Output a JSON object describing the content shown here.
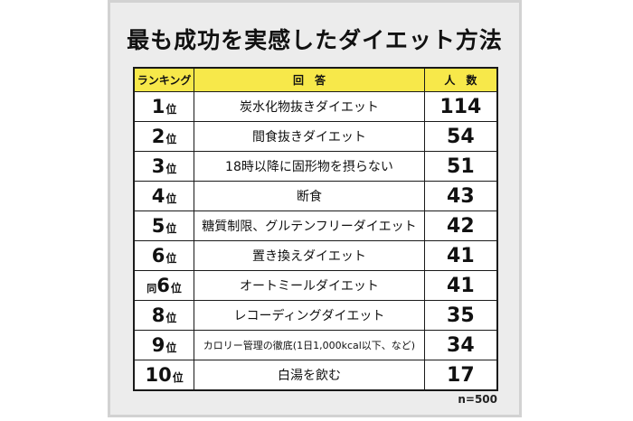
{
  "title": "最も成功を実感したダイエット方法",
  "headers": {
    "rank": "ランキング",
    "answer": "回　答",
    "count": "人　数"
  },
  "rows": [
    {
      "prefix": "",
      "rank": "1",
      "suffix": "位",
      "answer": "炭水化物抜きダイエット",
      "count": "114"
    },
    {
      "prefix": "",
      "rank": "2",
      "suffix": "位",
      "answer": "間食抜きダイエット",
      "count": "54"
    },
    {
      "prefix": "",
      "rank": "3",
      "suffix": "位",
      "answer": "18時以降に固形物を摂らない",
      "count": "51"
    },
    {
      "prefix": "",
      "rank": "4",
      "suffix": "位",
      "answer": "断食",
      "count": "43"
    },
    {
      "prefix": "",
      "rank": "5",
      "suffix": "位",
      "answer": "糖質制限、グルテンフリーダイエット",
      "count": "42"
    },
    {
      "prefix": "",
      "rank": "6",
      "suffix": "位",
      "answer": "置き換えダイエット",
      "count": "41"
    },
    {
      "prefix": "同",
      "rank": "6",
      "suffix": "位",
      "answer": "オートミールダイエット",
      "count": "41"
    },
    {
      "prefix": "",
      "rank": "8",
      "suffix": "位",
      "answer": "レコーディングダイエット",
      "count": "35"
    },
    {
      "prefix": "",
      "rank": "9",
      "suffix": "位",
      "answer": "カロリー管理の徹底(1日1,000kcal以下、など)",
      "count": "34"
    },
    {
      "prefix": "",
      "rank": "10",
      "suffix": "位",
      "answer": "白湯を飲む",
      "count": "17"
    }
  ],
  "note": "n=500"
}
